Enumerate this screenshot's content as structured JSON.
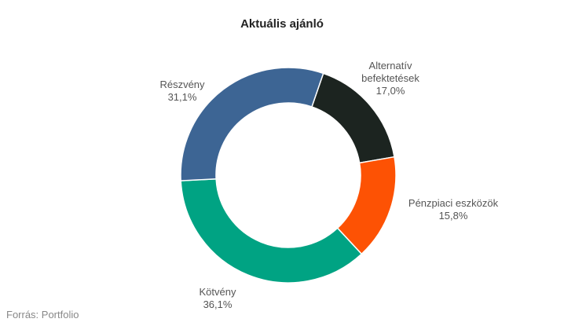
{
  "chart_data": {
    "type": "donut",
    "title": "Aktuális ajánló",
    "categories": [
      "Alternatív befektetések",
      "Pénzpiaci eszközök",
      "Kötvény",
      "Részvény"
    ],
    "values": [
      17.0,
      15.8,
      36.1,
      31.1
    ],
    "value_labels": [
      "17,0%",
      "15,8%",
      "36,1%",
      "31,1%"
    ],
    "colors": [
      "#1c2420",
      "#fd5204",
      "#00a383",
      "#3d6594"
    ],
    "source": "Forrás: Portfolio"
  }
}
